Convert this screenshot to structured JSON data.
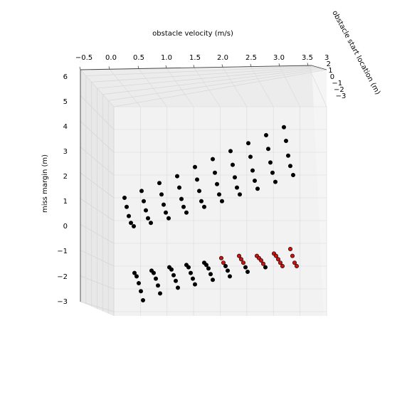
{
  "chart_data": {
    "type": "scatter",
    "projection": "3d",
    "title": "",
    "x_axis": {
      "label": "obstacle velocity (m/s)",
      "ticks": [
        "−0.5",
        "0.0",
        "0.5",
        "1.0",
        "1.5",
        "2.0",
        "2.5",
        "3.0",
        "3.5"
      ],
      "range": [
        -0.5,
        3.5
      ]
    },
    "y_axis": {
      "label": "miss margin (m)",
      "ticks": [
        "−3",
        "−2",
        "−1",
        "0",
        "1",
        "2",
        "3",
        "4",
        "5",
        "6"
      ],
      "range": [
        -3,
        6
      ]
    },
    "z_axis": {
      "label": "obstacle start location (m)",
      "ticks": [
        "3",
        "2",
        "1",
        "0",
        "−1",
        "−2",
        "−3"
      ],
      "range": [
        -3,
        3
      ]
    },
    "grid": true,
    "point_colors": {
      "safe": "#000000",
      "collision": "#cc1111"
    },
    "upper_series": {
      "name": "",
      "color": "#000000",
      "groups": [
        {
          "x": 0.0,
          "y": [
            2.0,
            1.6,
            1.2,
            0.9,
            0.75
          ]
        },
        {
          "x": 0.5,
          "y": [
            2.3,
            1.85,
            1.45,
            1.1,
            0.9
          ]
        },
        {
          "x": 0.8,
          "y": [
            2.65,
            2.15,
            1.7,
            1.35,
            1.1
          ]
        },
        {
          "x": 1.3,
          "y": [
            2.95,
            2.45,
            1.95,
            1.6,
            1.35
          ]
        },
        {
          "x": 1.75,
          "y": [
            3.35,
            2.8,
            2.3,
            1.85,
            1.6
          ]
        },
        {
          "x": 2.1,
          "y": [
            3.7,
            3.1,
            2.6,
            2.15,
            1.85
          ]
        },
        {
          "x": 2.55,
          "y": [
            4.05,
            3.45,
            2.9,
            2.45,
            2.15
          ]
        },
        {
          "x": 2.95,
          "y": [
            4.4,
            3.8,
            3.2,
            2.75,
            2.4
          ]
        },
        {
          "x": 3.3,
          "y": [
            4.75,
            4.15,
            3.55,
            3.1,
            2.7
          ]
        },
        {
          "x": 3.55,
          "y": [
            5.1,
            4.5,
            3.85,
            3.4,
            3.0
          ]
        }
      ]
    },
    "lower_series": {
      "name": "",
      "groups": [
        {
          "x": 0.2,
          "y": [
            -1.3,
            -1.45,
            -1.75,
            -2.1,
            -2.5
          ],
          "color": "#000000"
        },
        {
          "x": 0.7,
          "y": [
            -1.2,
            -1.3,
            -1.55,
            -1.85,
            -2.2
          ],
          "color": "#000000"
        },
        {
          "x": 1.1,
          "y": [
            -1.05,
            -1.15,
            -1.4,
            -1.65,
            -1.95
          ],
          "color": "#000000"
        },
        {
          "x": 1.5,
          "y": [
            -0.95,
            -1.05,
            -1.3,
            -1.55,
            -1.8
          ],
          "color": "#000000"
        },
        {
          "x": 1.95,
          "y": [
            -0.85,
            -0.95,
            -1.1,
            -1.35,
            -1.6
          ],
          "color": "#000000"
        },
        {
          "x": 2.25,
          "y": [
            -0.65,
            -0.85,
            -1.0,
            -1.2,
            -1.45
          ],
          "color": "#cc1111",
          "black_from": 2
        },
        {
          "x": 2.55,
          "y": [
            -0.55,
            -0.7,
            -0.85,
            -1.05,
            -1.25
          ],
          "color": "#cc1111",
          "black_from": 3
        },
        {
          "x": 2.95,
          "y": [
            -0.55,
            -0.65,
            -0.75,
            -0.9,
            -1.05
          ],
          "color": "#cc1111",
          "black_from": 4
        },
        {
          "x": 3.3,
          "y": [
            -0.45,
            -0.55,
            -0.7,
            -0.85,
            -1.0
          ],
          "color": "#cc1111",
          "black_from": 5
        },
        {
          "x": 3.55,
          "y": [
            -0.25,
            -0.55,
            -0.85,
            -1.0
          ],
          "color": "#cc1111",
          "black_from": 9
        }
      ]
    }
  }
}
